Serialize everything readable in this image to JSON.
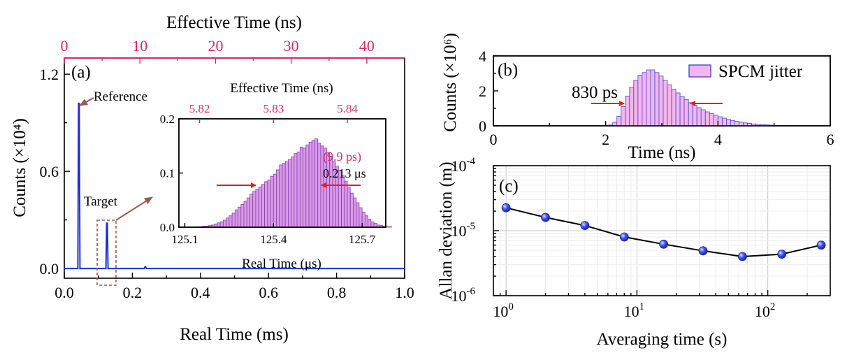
{
  "chart_data": [
    {
      "panel": "(a)",
      "type": "line",
      "xlabel": "Real Time (ms)",
      "ylabel": "Counts (×10⁴)",
      "top_axis_label": "Effective Time (ns)",
      "xlim": [
        0,
        1.0
      ],
      "ylim": [
        -0.06,
        1.3
      ],
      "top_xlim": [
        0,
        45
      ],
      "x_ticks": [
        "0.0",
        "0.2",
        "0.4",
        "0.6",
        "0.8",
        "1.0"
      ],
      "y_ticks": [
        "0.0",
        "0.6",
        "1.2"
      ],
      "top_ticks": [
        "0",
        "10",
        "20",
        "30",
        "40"
      ],
      "peaks": [
        {
          "label": "Reference",
          "x": 0.043,
          "y": 1.02
        },
        {
          "label": "Target",
          "x": 0.1254,
          "y": 0.28
        },
        {
          "label": "",
          "x": 0.238,
          "y": 0.01
        }
      ],
      "annotations": [
        "Reference",
        "Target"
      ],
      "colors": {
        "line": "#1f2fd6",
        "top_axis": "#d42a6a",
        "box": "#9b5a4c"
      }
    },
    {
      "panel": "(a) inset",
      "type": "bar",
      "xlabel": "Real Time (μs)",
      "top_axis_label": "Effective Time (ns)",
      "xlim": [
        125.08,
        125.78
      ],
      "ylim": [
        0,
        0.2
      ],
      "x_ticks": [
        "125.1",
        "125.4",
        "125.7"
      ],
      "y_ticks": [
        "0.0",
        "0.1",
        "0.2"
      ],
      "top_ticks": [
        "5.82",
        "5.83",
        "5.84"
      ],
      "bin_start": 125.15,
      "bin_width": 0.01,
      "values": [
        0.001,
        0.002,
        0.002,
        0.003,
        0.004,
        0.006,
        0.008,
        0.01,
        0.013,
        0.017,
        0.021,
        0.026,
        0.032,
        0.037,
        0.042,
        0.048,
        0.054,
        0.061,
        0.066,
        0.07,
        0.074,
        0.079,
        0.084,
        0.087,
        0.094,
        0.098,
        0.106,
        0.115,
        0.118,
        0.121,
        0.125,
        0.13,
        0.136,
        0.139,
        0.148,
        0.146,
        0.152,
        0.157,
        0.16,
        0.163,
        0.155,
        0.15,
        0.146,
        0.138,
        0.131,
        0.121,
        0.113,
        0.105,
        0.095,
        0.085,
        0.074,
        0.063,
        0.054,
        0.045,
        0.036,
        0.028,
        0.021,
        0.015,
        0.01,
        0.007,
        0.004,
        0.003,
        0.002,
        0.001,
        0.001
      ],
      "annotations": [
        "(9.9 ps)",
        "0.213 μs"
      ],
      "colors": {
        "bar_fill": "#d99ae8",
        "bar_edge": "#8e3fb0",
        "arrow": "#e0201e"
      }
    },
    {
      "panel": "(b)",
      "type": "bar",
      "xlabel": "Time (ns)",
      "ylabel": "Counts (×10⁶)",
      "xlim": [
        0,
        6
      ],
      "ylim": [
        0,
        4
      ],
      "x_ticks": [
        "0",
        "2",
        "4",
        "6"
      ],
      "y_ticks": [
        "0",
        "2",
        "4"
      ],
      "legend": "SPCM jitter",
      "legend_position": "top-right",
      "bin_start": 2.05,
      "bin_width": 0.075,
      "values": [
        0.05,
        0.2,
        0.55,
        1.1,
        1.7,
        2.2,
        2.6,
        2.9,
        3.05,
        3.2,
        3.2,
        3.05,
        2.85,
        2.6,
        2.35,
        2.1,
        1.88,
        1.68,
        1.5,
        1.33,
        1.18,
        1.04,
        0.92,
        0.8,
        0.7,
        0.6,
        0.52,
        0.44,
        0.37,
        0.31,
        0.26,
        0.21,
        0.17,
        0.14,
        0.11,
        0.09,
        0.07,
        0.055,
        0.04,
        0.03,
        0.022,
        0.015,
        0.01,
        0.006,
        0.003
      ],
      "annotations": [
        "830 ps"
      ],
      "colors": {
        "bar_fill": "#f2b6ec",
        "bar_edge": "#4a4ac8",
        "arrow": "#e0201e"
      }
    },
    {
      "panel": "(c)",
      "type": "line",
      "xlabel": "Averaging time (s)",
      "ylabel": "Allan deviation (m)",
      "x_scale": "log",
      "y_scale": "log",
      "xlim": [
        0.8,
        300
      ],
      "ylim": [
        1e-06,
        0.0001
      ],
      "x": [
        1,
        2,
        4,
        8,
        16,
        32,
        64,
        128,
        256
      ],
      "y": [
        2.25e-05,
        1.6e-05,
        1.2e-05,
        8e-06,
        6.2e-06,
        4.9e-06,
        4e-06,
        4.35e-06,
        6e-06
      ],
      "x_ticks": [
        {
          "base": "10",
          "exp": "0"
        },
        {
          "base": "10",
          "exp": "1"
        },
        {
          "base": "10",
          "exp": "2"
        }
      ],
      "y_ticks": [
        {
          "base": "10",
          "exp": "-4"
        },
        {
          "base": "10",
          "exp": "-5"
        },
        {
          "base": "10",
          "exp": "-6"
        }
      ],
      "grid": true,
      "colors": {
        "line": "#000000",
        "marker": "#2d3fe0"
      }
    }
  ]
}
